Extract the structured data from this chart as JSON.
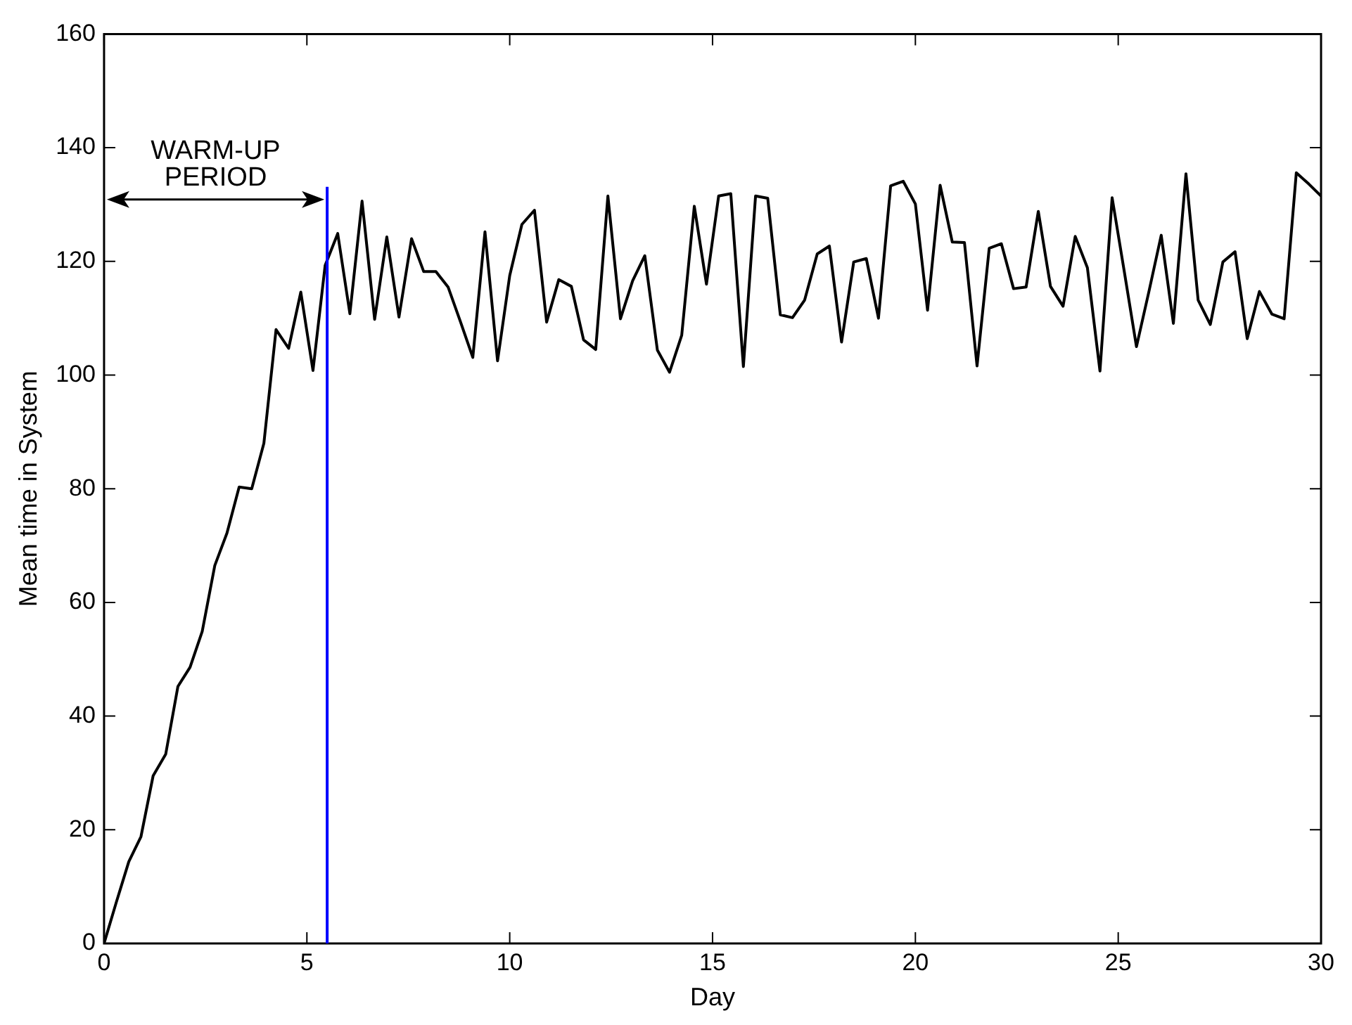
{
  "chart_data": {
    "type": "line",
    "xlabel": "Day",
    "ylabel": "Mean time in System",
    "x": [
      0,
      0.3,
      0.61,
      0.91,
      1.21,
      1.52,
      1.82,
      2.12,
      2.42,
      2.73,
      3.03,
      3.33,
      3.64,
      3.94,
      4.24,
      4.55,
      4.85,
      5.15,
      5.45,
      5.76,
      6.06,
      6.36,
      6.67,
      6.97,
      7.27,
      7.58,
      7.88,
      8.18,
      8.48,
      8.79,
      9.09,
      9.39,
      9.7,
      10,
      10.3,
      10.61,
      10.91,
      11.21,
      11.52,
      11.82,
      12.12,
      12.42,
      12.73,
      13.03,
      13.33,
      13.64,
      13.94,
      14.24,
      14.55,
      14.85,
      15.15,
      15.45,
      15.76,
      16.06,
      16.36,
      16.67,
      16.97,
      17.27,
      17.58,
      17.88,
      18.18,
      18.48,
      18.79,
      19.09,
      19.39,
      19.7,
      20,
      20.3,
      20.61,
      20.91,
      21.21,
      21.52,
      21.82,
      22.12,
      22.42,
      22.73,
      23.03,
      23.33,
      23.64,
      23.94,
      24.24,
      24.55,
      24.85,
      25.15,
      25.45,
      25.76,
      26.06,
      26.36,
      26.67,
      26.97,
      27.27,
      27.58,
      27.88,
      28.18,
      28.48,
      28.79,
      29.09,
      29.39,
      29.7,
      30
    ],
    "series": [
      {
        "color": "#000000",
        "values": [
          0,
          7.2,
          14.4,
          18.8,
          29.5,
          33.3,
          45.2,
          48.6,
          54.9,
          66.5,
          72.2,
          80.3,
          80.0,
          88.0,
          108.0,
          104.7,
          114.6,
          100.8,
          119.3,
          124.9,
          110.8,
          130.6,
          109.8,
          124.3,
          110.2,
          124.0,
          118.2,
          118.2,
          115.5,
          109.3,
          103.1,
          125.2,
          102.5,
          117.5,
          126.5,
          129.0,
          109.3,
          116.8,
          115.6,
          106.2,
          104.5,
          131.5,
          109.9,
          116.6,
          121.0,
          104.4,
          100.5,
          107.0,
          129.7,
          116.0,
          131.5,
          131.9,
          101.5,
          131.5,
          131.1,
          110.6,
          110.1,
          113.2,
          121.3,
          122.7,
          105.8,
          119.9,
          120.5,
          110.0,
          133.3,
          134.1,
          130.1,
          111.4,
          133.4,
          123.4,
          123.3,
          101.6,
          122.3,
          123.1,
          115.2,
          115.5,
          128.8,
          115.6,
          112.1,
          124.4,
          118.9,
          100.7,
          131.2,
          118.2,
          105.0,
          114.8,
          124.6,
          109.1,
          135.4,
          113.2,
          108.9,
          119.9,
          121.7,
          106.4,
          114.7,
          110.7,
          109.9,
          135.6,
          133.6,
          131.5
        ]
      }
    ],
    "xlim": [
      0,
      30
    ],
    "xticks": [
      0,
      5,
      10,
      15,
      20,
      25,
      30
    ],
    "ylim": [
      0,
      160
    ],
    "yticks": [
      0,
      20,
      40,
      60,
      80,
      100,
      120,
      140,
      160
    ],
    "grid": false,
    "legend": false,
    "marker": "none",
    "line_style": "solid",
    "ref_lines": [
      {
        "axis": "x",
        "value": 5.5,
        "color": "#0000ff"
      }
    ],
    "annotations": [
      "WARM-UP PERIOD"
    ]
  }
}
